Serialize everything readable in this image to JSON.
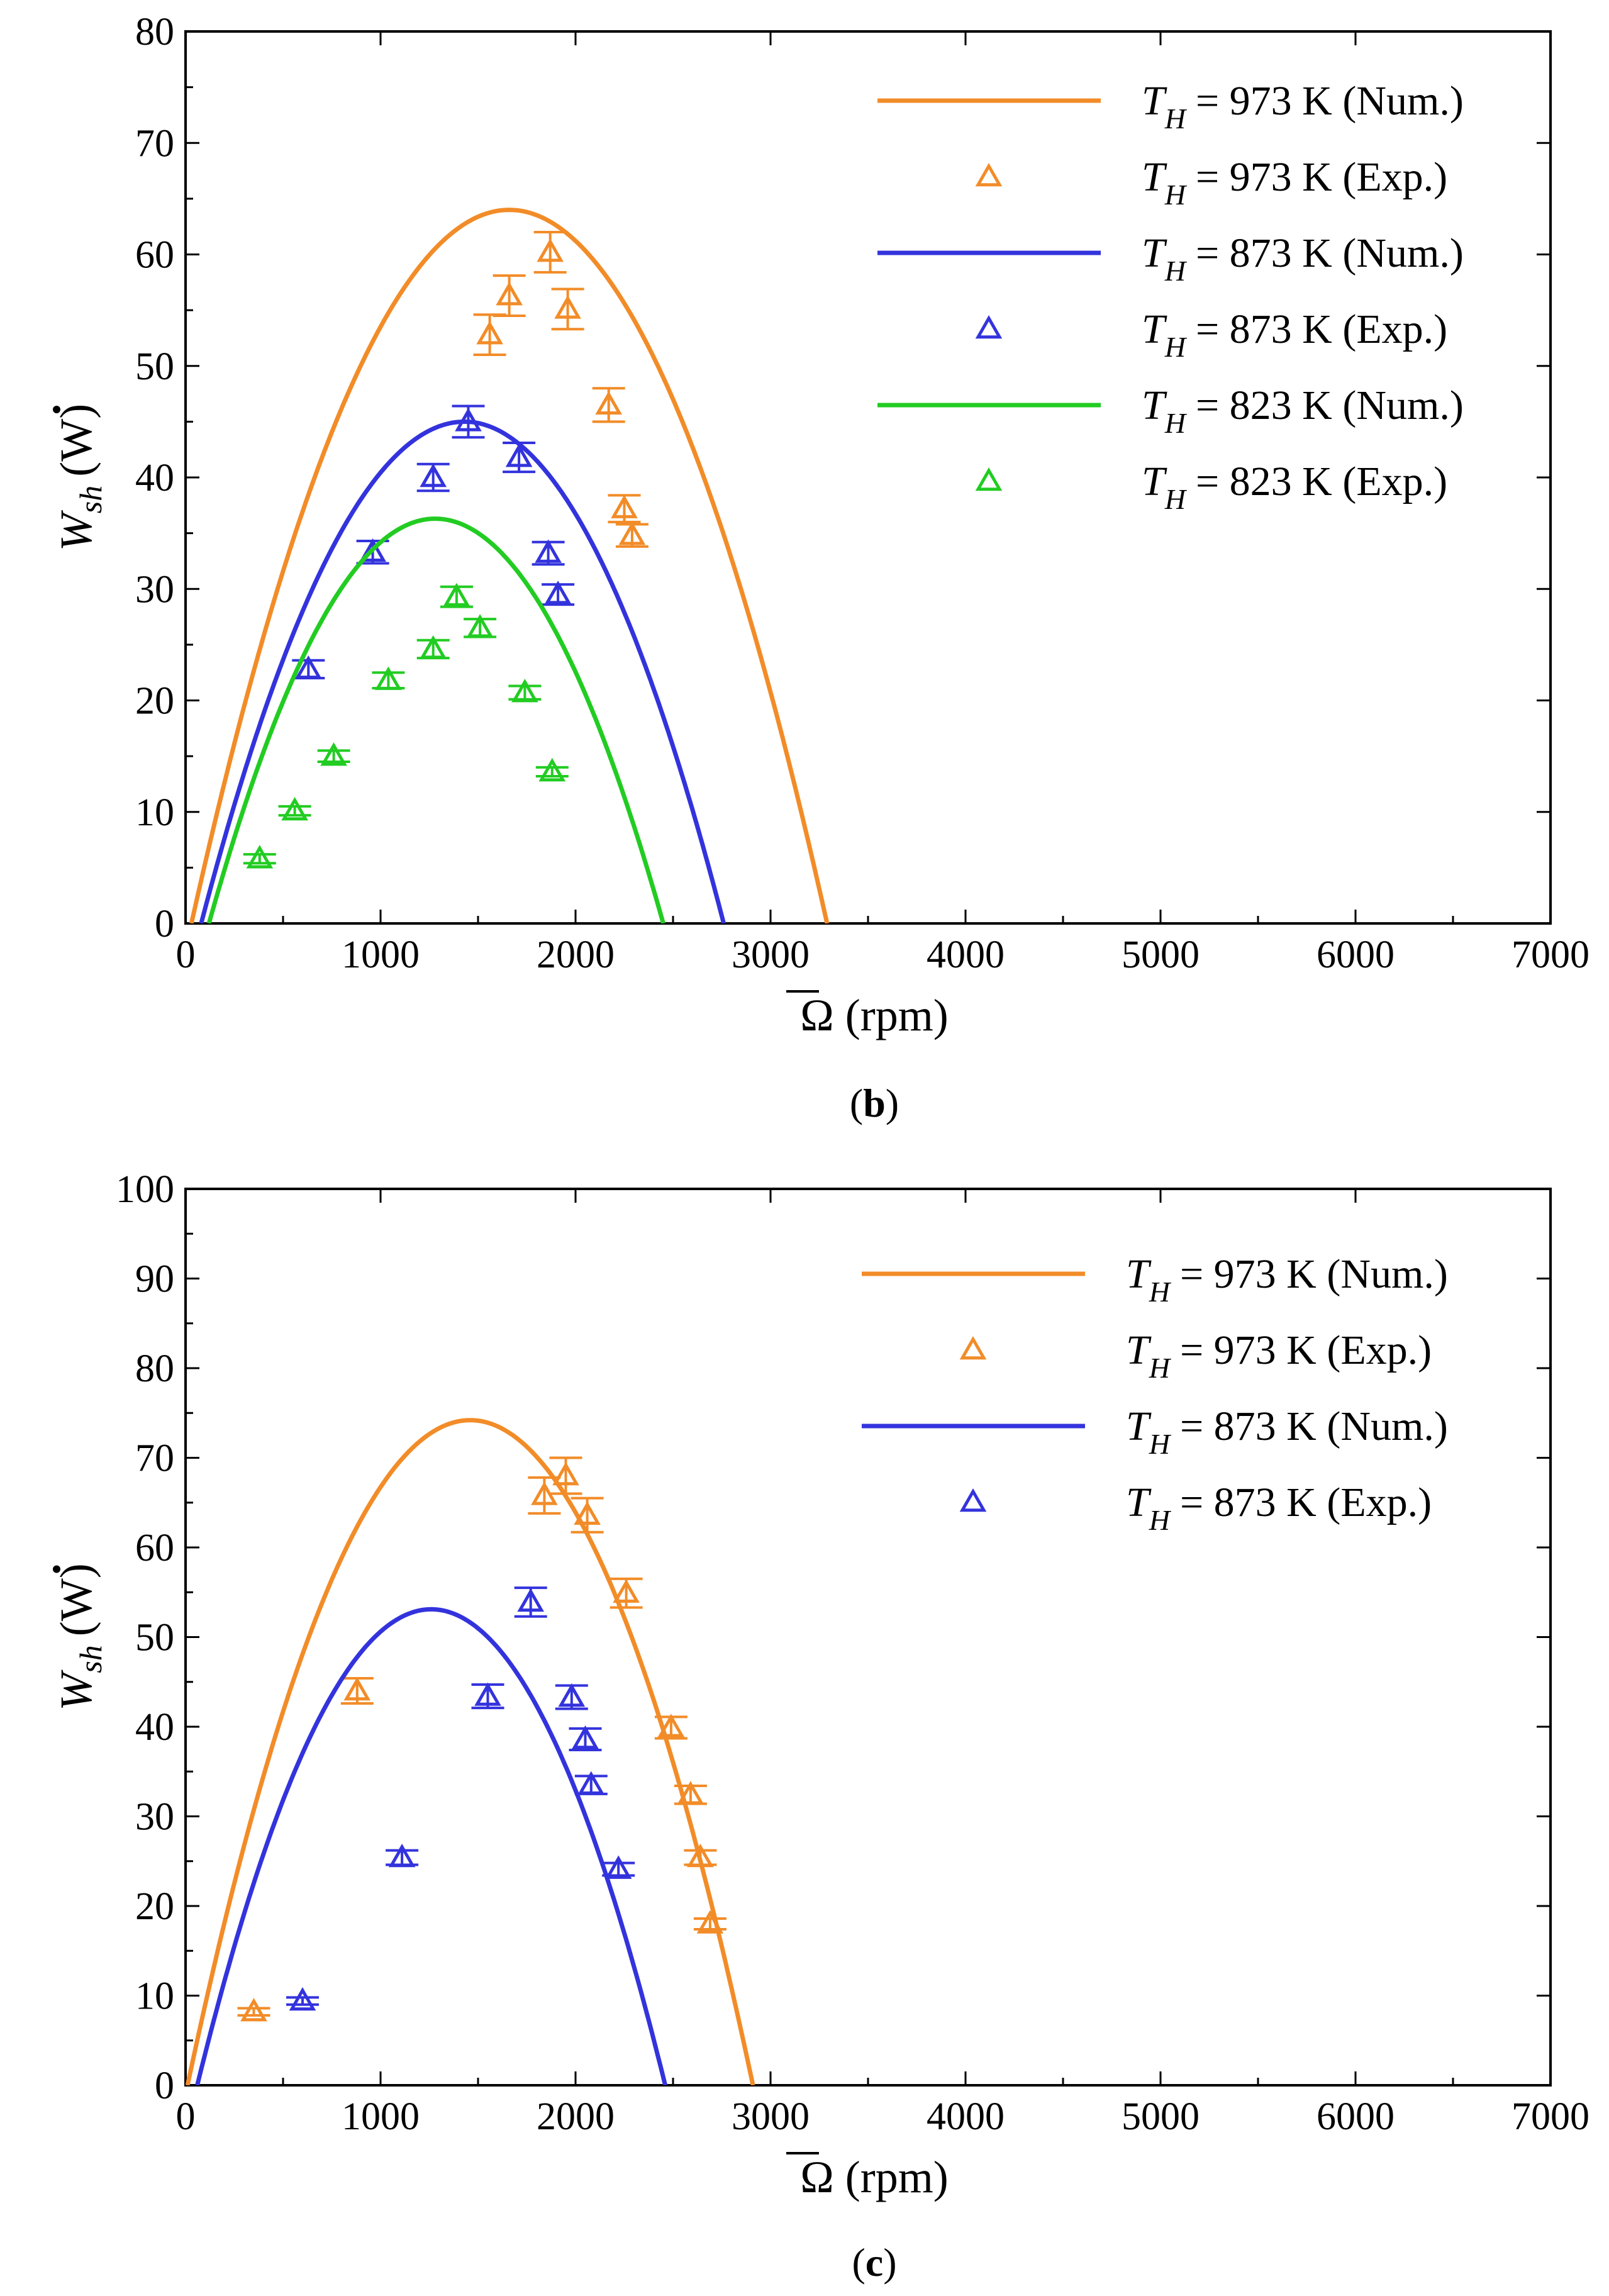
{
  "chart_data": [
    {
      "type": "line",
      "panel": "b",
      "xlabel": "(rpm)",
      "xsymbol": "Ω",
      "ylabel_symbol": "W",
      "ylabel_sub": "sh",
      "ylabel_unit": "(W)",
      "xlim": [
        0,
        7000
      ],
      "ylim": [
        0,
        80
      ],
      "xticks": [
        0,
        1000,
        2000,
        3000,
        4000,
        5000,
        6000,
        7000
      ],
      "yticks": [
        0,
        10,
        20,
        30,
        40,
        50,
        60,
        70,
        80
      ],
      "legend_position": "top-right",
      "series": [
        {
          "name": "T_H = 973 K (Num.)",
          "legend_sym": "T",
          "legend_sub": "H",
          "legend_rest": "= 973 K (Num.)",
          "kind": "line",
          "color": "#F28C28",
          "peak_x": 1660,
          "peak_y": 64,
          "x_range": [
            30,
            3290
          ]
        },
        {
          "name": "T_H = 973 K (Exp.)",
          "legend_sym": "T",
          "legend_sub": "H",
          "legend_rest": "= 973 K (Exp.)",
          "kind": "marker",
          "color": "#F28C28",
          "points": [
            [
              1560,
              52.8,
              1.8
            ],
            [
              1660,
              56.3,
              1.8
            ],
            [
              1870,
              60.2,
              1.8
            ],
            [
              1960,
              55.1,
              1.8
            ],
            [
              2170,
              46.5,
              1.5
            ],
            [
              2250,
              37.2,
              1.2
            ],
            [
              2290,
              34.8,
              1.0
            ]
          ]
        },
        {
          "name": "T_H = 873 K (Num.)",
          "legend_sym": "T",
          "legend_sub": "H",
          "legend_rest": "= 873 K (Num.)",
          "kind": "line",
          "color": "#3333DD",
          "peak_x": 1430,
          "peak_y": 45,
          "x_range": [
            80,
            2760
          ]
        },
        {
          "name": "T_H = 873 K (Exp.)",
          "legend_sym": "T",
          "legend_sub": "H",
          "legend_rest": "= 873 K (Exp.)",
          "kind": "marker",
          "color": "#3333DD",
          "points": [
            [
              630,
              22.8,
              0.8
            ],
            [
              960,
              33.3,
              1.0
            ],
            [
              1270,
              40.0,
              1.2
            ],
            [
              1450,
              45.0,
              1.4
            ],
            [
              1710,
              41.8,
              1.3
            ],
            [
              1860,
              33.2,
              1.0
            ],
            [
              1910,
              29.5,
              0.9
            ]
          ]
        },
        {
          "name": "T_H = 823 K (Num.)",
          "legend_sym": "T",
          "legend_sub": "H",
          "legend_rest": "= 823 K (Num.)",
          "kind": "line",
          "color": "#22CC22",
          "peak_x": 1280,
          "peak_y": 36.3,
          "x_range": [
            120,
            2450
          ]
        },
        {
          "name": "T_H = 823 K (Exp.)",
          "legend_sym": "T",
          "legend_sub": "H",
          "legend_rest": "= 823 K (Exp.)",
          "kind": "marker",
          "color": "#22CC22",
          "points": [
            [
              380,
              5.8,
              0.4
            ],
            [
              560,
              10.1,
              0.4
            ],
            [
              760,
              15.0,
              0.5
            ],
            [
              1040,
              21.8,
              0.7
            ],
            [
              1270,
              24.6,
              0.8
            ],
            [
              1390,
              29.3,
              0.9
            ],
            [
              1510,
              26.5,
              0.8
            ],
            [
              1740,
              20.7,
              0.6
            ],
            [
              1880,
              13.6,
              0.4
            ]
          ]
        }
      ]
    },
    {
      "type": "line",
      "panel": "c",
      "xlabel": "(rpm)",
      "xsymbol": "Ω",
      "ylabel_symbol": "W",
      "ylabel_sub": "sh",
      "ylabel_unit": "(W)",
      "xlim": [
        0,
        7000
      ],
      "ylim": [
        0,
        100
      ],
      "xticks": [
        0,
        1000,
        2000,
        3000,
        4000,
        5000,
        6000,
        7000
      ],
      "yticks": [
        0,
        10,
        20,
        30,
        40,
        50,
        60,
        70,
        80,
        90,
        100
      ],
      "legend_position": "top-right",
      "series": [
        {
          "name": "T_H = 973 K (Num.)",
          "legend_sym": "T",
          "legend_sub": "H",
          "legend_rest": "= 973 K (Num.)",
          "kind": "line",
          "color": "#F28C28",
          "peak_x": 1460,
          "peak_y": 74.2,
          "x_range": [
            10,
            2910
          ]
        },
        {
          "name": "T_H = 973 K (Exp.)",
          "legend_sym": "T",
          "legend_sub": "H",
          "legend_rest": "= 973 K (Exp.)",
          "kind": "marker",
          "color": "#F28C28",
          "points": [
            [
              350,
              8.2,
              0.4
            ],
            [
              880,
              44.0,
              1.4
            ],
            [
              1840,
              65.8,
              2.0
            ],
            [
              1950,
              68.0,
              2.0
            ],
            [
              2060,
              63.6,
              1.9
            ],
            [
              2260,
              54.9,
              1.6
            ],
            [
              2490,
              39.9,
              1.2
            ],
            [
              2590,
              32.4,
              1.0
            ],
            [
              2640,
              25.4,
              0.8
            ],
            [
              2690,
              18.0,
              0.6
            ]
          ]
        },
        {
          "name": "T_H = 873 K (Num.)",
          "legend_sym": "T",
          "legend_sub": "H",
          "legend_rest": "= 873 K (Num.)",
          "kind": "line",
          "color": "#3333DD",
          "peak_x": 1260,
          "peak_y": 53.1,
          "x_range": [
            60,
            2460
          ]
        },
        {
          "name": "T_H = 873 K (Exp.)",
          "legend_sym": "T",
          "legend_sub": "H",
          "legend_rest": "= 873 K (Exp.)",
          "kind": "marker",
          "color": "#3333DD",
          "points": [
            [
              600,
              9.4,
              0.4
            ],
            [
              1110,
              25.4,
              0.8
            ],
            [
              1550,
              43.4,
              1.3
            ],
            [
              1770,
              53.9,
              1.6
            ],
            [
              1980,
              43.3,
              1.3
            ],
            [
              2050,
              38.6,
              1.2
            ],
            [
              2080,
              33.5,
              1.0
            ],
            [
              2220,
              24.1,
              0.7
            ]
          ]
        }
      ]
    }
  ]
}
